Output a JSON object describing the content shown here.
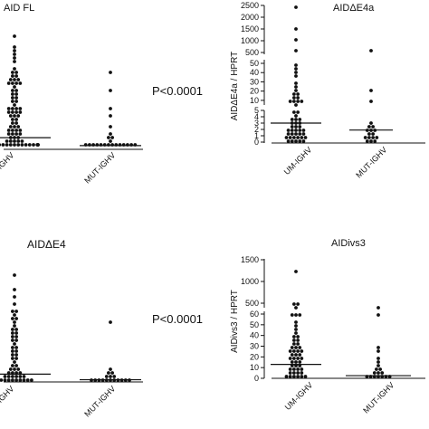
{
  "chart_data": [
    {
      "type": "scatter",
      "title": "AID FL",
      "ylabel": "",
      "annotation": "P<0.0001",
      "categories": [
        "UM-IGHV",
        "MUT-IGHV"
      ],
      "series": [
        {
          "name": "UM-IGHV",
          "values": [
            0.05,
            0.1,
            0.15,
            0.2,
            0.3,
            0.4,
            0.5,
            0.6,
            0.8,
            1.0,
            1.2,
            1.5,
            1.8,
            2.0,
            2.5,
            3.0,
            3.5,
            4.0,
            4.5,
            5.0,
            6.0,
            7.0,
            8.0,
            9.0,
            10.0,
            11.0,
            12.0,
            13.0,
            14.0,
            15.0,
            16.0,
            17.0,
            18.0,
            19.0,
            20.0,
            21.0,
            22.0,
            24.0,
            26.0,
            28.0,
            30.0,
            31.0,
            32.0,
            33.0,
            34.0,
            35.0,
            36.0,
            37.0,
            38.0,
            39.0,
            40.0,
            42.0,
            44.0,
            46.0,
            48.0,
            50.0,
            52.0,
            54.0,
            56.0,
            58.0,
            60.0,
            62.0,
            63.0,
            64.0,
            65.0,
            66.0,
            67.0,
            68.0,
            70.0,
            72.0,
            74.0,
            76.0,
            80.0,
            84.0,
            88.0,
            92.0,
            96.0,
            100.0,
            110.0
          ],
          "median": 9.0
        },
        {
          "name": "MUT-IGHV",
          "values": [
            0.05,
            0.1,
            0.2,
            0.3,
            0.4,
            0.5,
            0.6,
            0.7,
            0.8,
            1.0,
            1.2,
            1.5,
            2.0,
            3.0,
            5.0,
            8.0,
            10.0,
            14.0,
            20.0,
            30.0,
            40.0,
            55.0,
            73.0
          ],
          "median": 1.0
        }
      ],
      "ylim": [
        0,
        120
      ]
    },
    {
      "type": "scatter",
      "title": "AIDΔE4a",
      "ylabel": "AIDΔE4a / HPRT",
      "categories": [
        "UM-IGHV",
        "MUT-IGHV"
      ],
      "y_ticks": [
        "0",
        "1",
        "2",
        "3",
        "4",
        "5",
        "10",
        "20",
        "30",
        "40",
        "50",
        "500",
        "1000",
        "1500",
        "2000",
        "2500"
      ],
      "series": [
        {
          "name": "UM-IGHV",
          "values": [
            0.05,
            0.1,
            0.2,
            0.3,
            0.4,
            0.5,
            0.6,
            0.7,
            0.8,
            0.9,
            1.0,
            1.1,
            1.2,
            1.3,
            1.4,
            1.5,
            1.6,
            1.7,
            1.8,
            1.9,
            2.0,
            2.2,
            2.4,
            2.6,
            2.8,
            3.0,
            3.2,
            3.4,
            3.6,
            3.8,
            4.0,
            4.5,
            5.0,
            6.0,
            7.0,
            8.0,
            9.0,
            10.0,
            12.0,
            14.0,
            16.0,
            18.0,
            20.0,
            25.0,
            30.0,
            35.0,
            40.0,
            45.0,
            48.0,
            600.0,
            1000.0,
            1500.0,
            2500.0
          ],
          "median": 3.0
        },
        {
          "name": "MUT-IGHV",
          "values": [
            0.1,
            0.2,
            0.3,
            0.5,
            0.7,
            0.9,
            1.0,
            1.2,
            1.4,
            1.6,
            1.8,
            2.0,
            2.2,
            2.5,
            3.0,
            10.0,
            20.0,
            600.0
          ],
          "median": 1.9
        }
      ]
    },
    {
      "type": "scatter",
      "title": "AIDΔE4",
      "ylabel": "",
      "annotation": "P<0.0001",
      "categories": [
        "UM-IGHV",
        "MUT-IGHV"
      ],
      "series": [
        {
          "name": "UM-IGHV",
          "values": [
            0.05,
            0.1,
            0.2,
            0.3,
            0.4,
            0.6,
            0.8,
            1.0,
            1.3,
            1.6,
            2.0,
            2.5,
            3.0,
            3.5,
            4.0,
            5.0,
            6.0,
            7.0,
            8.0,
            9.0,
            10.0,
            11.0,
            12.0,
            14.0,
            16.0,
            18.0,
            20.0,
            22.0,
            24.0,
            26.0,
            28.0,
            30.0,
            32.0,
            34.0,
            36.0,
            38.0,
            40.0,
            42.0,
            44.0,
            46.0,
            48.0,
            50.0,
            52.0,
            55.0,
            58.0,
            60.0,
            62.0,
            65.0,
            68.0,
            70.0,
            75.0,
            82.0,
            92.0,
            106.0
          ],
          "median": 6.0
        },
        {
          "name": "MUT-IGHV",
          "values": [
            0.05,
            0.1,
            0.2,
            0.3,
            0.4,
            0.5,
            0.6,
            0.8,
            1.0,
            1.3,
            1.6,
            2.0,
            3.0,
            4.0,
            6.0,
            8.0,
            12.0,
            56.0
          ],
          "median": 0.4
        }
      ],
      "ylim": [
        0,
        120
      ]
    },
    {
      "type": "scatter",
      "title": "AIDivs3",
      "ylabel": "AIDivs3 / HPRT",
      "categories": [
        "UM-IGHV",
        "MUT-IGHV"
      ],
      "y_ticks": [
        "0",
        "10",
        "20",
        "30",
        "40",
        "50",
        "60",
        "500",
        "1000",
        "1500"
      ],
      "series": [
        {
          "name": "UM-IGHV",
          "values": [
            0.5,
            1.0,
            1.5,
            2.0,
            2.5,
            3.0,
            3.5,
            4.0,
            5.0,
            6.0,
            7.0,
            8.0,
            9.0,
            10.0,
            11.0,
            12.0,
            13.0,
            14.0,
            15.0,
            16.0,
            17.0,
            18.0,
            19.0,
            20.0,
            21.0,
            22.0,
            23.0,
            24.0,
            25.0,
            26.0,
            27.0,
            28.0,
            29.0,
            30.0,
            31.0,
            32.0,
            34.0,
            36.0,
            38.0,
            40.0,
            43.0,
            46.0,
            50.0,
            54.0,
            58.0,
            62.0,
            65.0,
            300.0,
            420.0,
            500.0,
            1200.0
          ],
          "median": 13.0
        },
        {
          "name": "MUT-IGHV",
          "values": [
            0.3,
            0.6,
            1.0,
            1.5,
            2.0,
            2.5,
            3.0,
            4.0,
            5.0,
            6.0,
            8.0,
            10.0,
            13.0,
            16.0,
            20.0,
            25.0,
            30.0,
            60.0,
            300.0
          ],
          "median": 2.5
        }
      ]
    }
  ]
}
